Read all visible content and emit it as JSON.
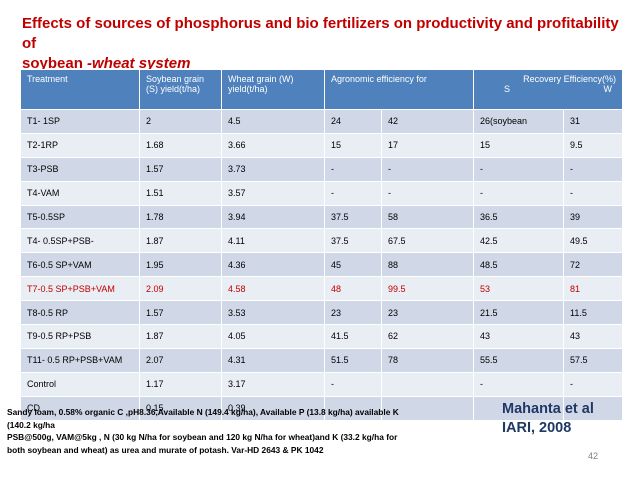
{
  "title": {
    "line1": "Effects of sources of phosphorus and bio fertilizers on productivity and profitability of",
    "line2_prefix": "soybean ",
    "line2_italic": "-wheat system"
  },
  "table": {
    "headers": {
      "treatment": "Treatment",
      "soy_line1": "Soybean grain",
      "soy_line2": "(S) yield(t/ha)",
      "wheat_line1": "Wheat grain (W)",
      "wheat_line2": "yield(t/ha)",
      "agro": "Agronomic efficiency for",
      "recovery": "Recovery Efficiency(%)",
      "rec_s": "S",
      "rec_w": "W"
    },
    "rows": [
      [
        "T1- 1SP",
        "2",
        "4.5",
        "24",
        "42",
        "26(soybean",
        "31"
      ],
      [
        "T2-1RP",
        "1.68",
        "3.66",
        "15",
        "17",
        "15",
        "9.5"
      ],
      [
        "T3-PSB",
        "1.57",
        "3.73",
        "-",
        "-",
        "-",
        "-"
      ],
      [
        "T4-VAM",
        "1.51",
        "3.57",
        "-",
        "-",
        "-",
        "-"
      ],
      [
        "T5-0.5SP",
        "1.78",
        "3.94",
        "37.5",
        "58",
        "36.5",
        "39"
      ],
      [
        "T4- 0.5SP+PSB-",
        "1.87",
        "4.11",
        "37.5",
        "67.5",
        "42.5",
        "49.5"
      ],
      [
        "T6-0.5 SP+VAM",
        "1.95",
        "4.36",
        "45",
        "88",
        "48.5",
        "72"
      ],
      [
        "T7-0.5 SP+PSB+VAM",
        "2.09",
        "4.58",
        "48",
        "99.5",
        "53",
        "81"
      ],
      [
        "T8-0.5 RP",
        "1.57",
        "3.53",
        "23",
        "23",
        "21.5",
        "11.5"
      ],
      [
        "T9-0.5 RP+PSB",
        "1.87",
        "4.05",
        "41.5",
        "62",
        "43",
        "43"
      ],
      [
        "T11- 0.5 RP+PSB+VAM",
        "2.07",
        "4.31",
        "51.5",
        "78",
        "55.5",
        "57.5"
      ],
      [
        "Control",
        "1.17",
        "3.17",
        "-",
        "",
        "-",
        "-"
      ],
      [
        "CD",
        "0.15",
        "0.39",
        "",
        "",
        "",
        ""
      ]
    ],
    "highlight_row_index": 7,
    "colors": {
      "header": "#4f81bd",
      "row_odd": "#d0d8e8",
      "row_even": "#e9edf4",
      "highlight_text": "#c00000"
    }
  },
  "footnote": {
    "line1": "Sandy loam, 0.58% organic C ,pH8.36,Available N (149.4 kg/ha), Available P (13.8 kg/ha) available K",
    "line2": "(140.2 kg/ha",
    "line3": "PSB@500g, VAM@5kg , N (30 kg N/ha for soybean and 120 kg N/ha for wheat)and K (33.2 kg/ha for",
    "line4": "both soybean and wheat) as urea and murate of potash. Var-HD 2643 & PK 1042"
  },
  "citation": {
    "line1": "Mahanta et al",
    "line2": "IARI, 2008"
  },
  "page_number": "42",
  "colors": {
    "title": "#c00000",
    "citation": "#1f3864"
  }
}
